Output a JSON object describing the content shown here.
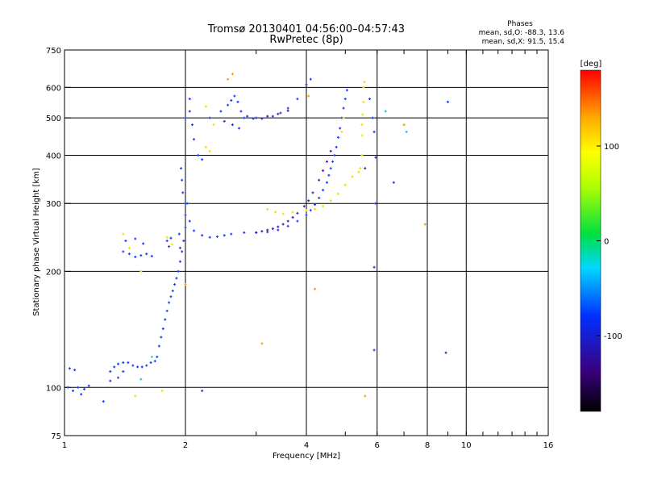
{
  "chart_data": {
    "type": "scatter",
    "title": "Tromsø 20130401 04:56:00–04:57:43",
    "subtitle": "RwPretec (8p)",
    "xlabel": "Frequency [MHz]",
    "ylabel": "Stationary phase Virtual Height [km]",
    "x_scale": "log",
    "y_scale": "log",
    "xlim": [
      1,
      16
    ],
    "ylim": [
      75,
      750
    ],
    "x_ticks": [
      1,
      2,
      4,
      6,
      8,
      10,
      16
    ],
    "x_tick_labels": [
      "1",
      "2",
      "4",
      "6",
      "8",
      "10",
      "16"
    ],
    "y_ticks": [
      75,
      100,
      200,
      300,
      400,
      500,
      600,
      750
    ],
    "y_tick_labels": [
      "75",
      "100",
      "200",
      "300",
      "400",
      "500",
      "600",
      "750"
    ],
    "phase_note": {
      "heading": "Phases",
      "line_o": "mean, sd,O: -88.3, 13.6",
      "line_x": "mean, sd,X:  91.5, 15.4"
    },
    "colorbar": {
      "label": "[deg]",
      "range": [
        -180,
        180
      ],
      "ticks": [
        100,
        0,
        -100
      ],
      "tick_labels": [
        "100",
        "0",
        "-100"
      ]
    },
    "colors": {
      "blue": "#1a3cff",
      "purple": "#5018b0",
      "yellow": "#f0e000",
      "orange": "#ff9a00",
      "cyan": "#19c8e8"
    },
    "groups": [
      {
        "color": "blue",
        "phase": -100,
        "points": [
          [
            1.02,
            100
          ],
          [
            1.05,
            98
          ],
          [
            1.08,
            100
          ],
          [
            1.1,
            96
          ],
          [
            1.12,
            99
          ],
          [
            1.15,
            101
          ],
          [
            1.03,
            112
          ],
          [
            1.06,
            111
          ]
        ]
      },
      {
        "color": "blue",
        "phase": -100,
        "points": [
          [
            1.3,
            110
          ],
          [
            1.33,
            113
          ],
          [
            1.36,
            115
          ],
          [
            1.4,
            116
          ],
          [
            1.44,
            116
          ],
          [
            1.48,
            114
          ],
          [
            1.52,
            113
          ],
          [
            1.56,
            113
          ],
          [
            1.6,
            114
          ],
          [
            1.64,
            116
          ],
          [
            1.68,
            117
          ],
          [
            1.3,
            104
          ],
          [
            1.36,
            106
          ],
          [
            1.4,
            110
          ]
        ]
      },
      {
        "color": "blue",
        "phase": -100,
        "points": [
          [
            1.7,
            120
          ],
          [
            1.72,
            128
          ],
          [
            1.74,
            135
          ],
          [
            1.76,
            142
          ],
          [
            1.78,
            150
          ],
          [
            1.8,
            158
          ],
          [
            1.82,
            166
          ],
          [
            1.84,
            172
          ],
          [
            1.86,
            178
          ],
          [
            1.88,
            185
          ],
          [
            1.9,
            192
          ],
          [
            1.92,
            200
          ],
          [
            1.94,
            212
          ],
          [
            1.96,
            225
          ],
          [
            1.98,
            240
          ],
          [
            2.0,
            260
          ],
          [
            2.0,
            280
          ],
          [
            2.0,
            300
          ],
          [
            1.97,
            320
          ],
          [
            1.96,
            345
          ],
          [
            1.95,
            370
          ],
          [
            1.94,
            230
          ],
          [
            1.93,
            250
          ]
        ]
      },
      {
        "color": "blue",
        "phase": -100,
        "points": [
          [
            2.02,
            300
          ],
          [
            2.05,
            270
          ],
          [
            2.1,
            255
          ],
          [
            2.2,
            248
          ],
          [
            2.3,
            245
          ],
          [
            2.4,
            246
          ],
          [
            2.5,
            248
          ],
          [
            2.6,
            250
          ],
          [
            2.8,
            252
          ],
          [
            3.0,
            252
          ],
          [
            3.2,
            253
          ],
          [
            3.4,
            256
          ],
          [
            3.6,
            262
          ],
          [
            3.8,
            270
          ],
          [
            4.0,
            280
          ],
          [
            4.1,
            288
          ],
          [
            4.2,
            298
          ],
          [
            4.3,
            310
          ],
          [
            4.4,
            325
          ],
          [
            4.5,
            340
          ],
          [
            4.55,
            355
          ],
          [
            4.6,
            370
          ],
          [
            4.65,
            385
          ],
          [
            4.7,
            400
          ],
          [
            4.75,
            420
          ],
          [
            4.8,
            445
          ],
          [
            4.85,
            470
          ],
          [
            4.9,
            500
          ],
          [
            4.95,
            530
          ],
          [
            5.0,
            560
          ],
          [
            5.05,
            590
          ]
        ]
      },
      {
        "color": "blue",
        "phase": -100,
        "points": [
          [
            2.05,
            520
          ],
          [
            2.08,
            480
          ],
          [
            2.1,
            440
          ],
          [
            2.15,
            400
          ],
          [
            2.2,
            390
          ],
          [
            2.05,
            560
          ],
          [
            2.0,
            500
          ],
          [
            2.3,
            500
          ],
          [
            2.45,
            520
          ],
          [
            2.55,
            540
          ],
          [
            2.6,
            555
          ],
          [
            2.65,
            570
          ],
          [
            2.7,
            550
          ],
          [
            2.75,
            520
          ],
          [
            2.8,
            500
          ],
          [
            2.5,
            490
          ],
          [
            2.62,
            480
          ],
          [
            2.72,
            470
          ],
          [
            2.85,
            505
          ],
          [
            2.95,
            498
          ],
          [
            3.1,
            498
          ],
          [
            3.3,
            505
          ],
          [
            3.45,
            515
          ],
          [
            3.6,
            530
          ],
          [
            3.8,
            560
          ],
          [
            4.0,
            610
          ],
          [
            4.1,
            630
          ]
        ]
      },
      {
        "color": "blue",
        "phase": -100,
        "points": [
          [
            1.4,
            225
          ],
          [
            1.45,
            222
          ],
          [
            1.5,
            218
          ],
          [
            1.55,
            220
          ],
          [
            1.6,
            222
          ],
          [
            1.65,
            219
          ],
          [
            1.42,
            240
          ],
          [
            1.5,
            243
          ],
          [
            1.57,
            236
          ],
          [
            1.8,
            240
          ],
          [
            1.82,
            232
          ],
          [
            1.84,
            244
          ]
        ]
      },
      {
        "color": "purple",
        "phase": -120,
        "points": [
          [
            3.0,
            252
          ],
          [
            3.1,
            254
          ],
          [
            3.2,
            256
          ],
          [
            3.3,
            258
          ],
          [
            3.4,
            261
          ],
          [
            3.5,
            265
          ],
          [
            3.6,
            270
          ],
          [
            3.7,
            276
          ],
          [
            3.8,
            283
          ],
          [
            3.95,
            295
          ],
          [
            4.05,
            305
          ],
          [
            4.15,
            320
          ],
          [
            4.3,
            345
          ],
          [
            4.4,
            365
          ],
          [
            4.5,
            385
          ],
          [
            4.6,
            410
          ],
          [
            3.0,
            500
          ],
          [
            3.2,
            505
          ],
          [
            3.4,
            512
          ],
          [
            3.6,
            522
          ]
        ]
      },
      {
        "color": "yellow",
        "phase": 100,
        "points": [
          [
            3.2,
            290
          ],
          [
            3.35,
            285
          ],
          [
            3.5,
            282
          ],
          [
            3.7,
            285
          ],
          [
            4.0,
            288
          ],
          [
            4.2,
            290
          ],
          [
            4.4,
            295
          ],
          [
            4.6,
            305
          ],
          [
            4.8,
            318
          ],
          [
            5.0,
            335
          ],
          [
            5.2,
            352
          ],
          [
            5.4,
            362
          ],
          [
            5.45,
            370
          ],
          [
            5.5,
            400
          ],
          [
            5.5,
            450
          ],
          [
            5.5,
            480
          ],
          [
            5.52,
            510
          ],
          [
            5.55,
            550
          ],
          [
            5.55,
            600
          ],
          [
            5.58,
            620
          ],
          [
            1.4,
            250
          ],
          [
            1.45,
            230
          ],
          [
            1.55,
            200
          ],
          [
            1.8,
            245
          ],
          [
            1.85,
            235
          ],
          [
            2.25,
            535
          ],
          [
            2.35,
            480
          ],
          [
            2.25,
            420
          ],
          [
            2.3,
            410
          ],
          [
            4.9,
            460
          ],
          [
            4.95,
            500
          ],
          [
            1.5,
            95
          ],
          [
            1.75,
            98
          ]
        ]
      },
      {
        "color": "orange",
        "phase": 130,
        "points": [
          [
            2.62,
            650
          ],
          [
            2.55,
            630
          ],
          [
            4.05,
            570
          ],
          [
            7.0,
            480
          ],
          [
            7.9,
            265
          ],
          [
            4.2,
            180
          ],
          [
            2.0,
            185
          ],
          [
            5.6,
            95
          ],
          [
            3.1,
            130
          ]
        ]
      },
      {
        "color": "cyan",
        "phase": -20,
        "points": [
          [
            6.3,
            520
          ],
          [
            7.1,
            460
          ],
          [
            1.65,
            120
          ],
          [
            1.55,
            105
          ]
        ]
      },
      {
        "color": "blue",
        "phase": -100,
        "points": [
          [
            5.75,
            560
          ],
          [
            5.85,
            500
          ],
          [
            5.9,
            460
          ],
          [
            5.95,
            395
          ],
          [
            5.95,
            300
          ],
          [
            5.9,
            205
          ],
          [
            5.9,
            125
          ],
          [
            6.6,
            340
          ],
          [
            9.0,
            550
          ],
          [
            2.2,
            98
          ],
          [
            1.25,
            92
          ]
        ]
      },
      {
        "color": "purple",
        "phase": -130,
        "points": [
          [
            8.9,
            123
          ],
          [
            5.6,
            370
          ]
        ]
      }
    ]
  }
}
